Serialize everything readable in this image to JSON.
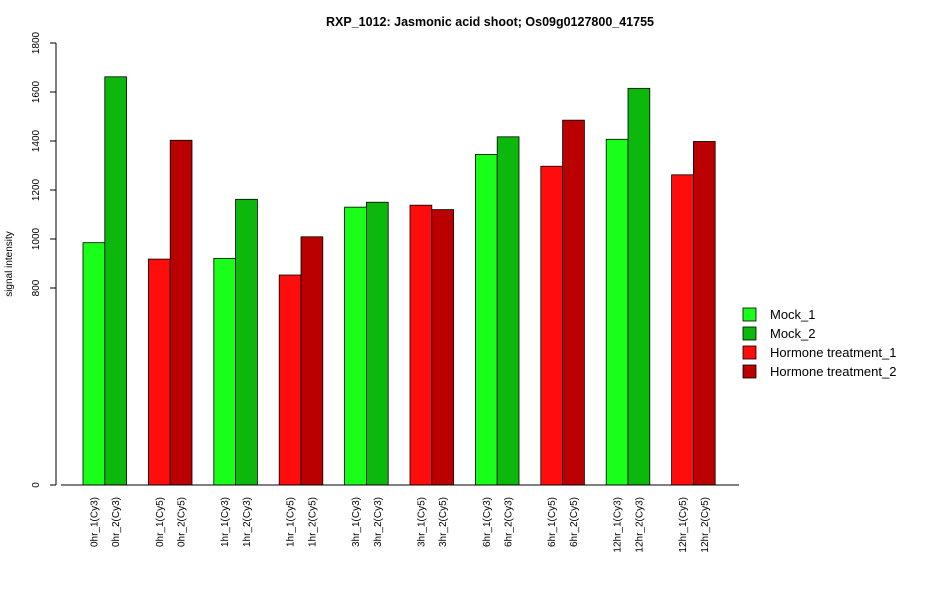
{
  "chart_data": {
    "type": "bar",
    "title": "RXP_1012: Jasmonic acid shoot; Os09g0127800_41755",
    "xlabel": "",
    "ylabel": "signal intensity",
    "yticks": [
      0,
      800,
      1000,
      1200,
      1400,
      1600,
      1800
    ],
    "ylim": [
      0,
      1800
    ],
    "y_axis_note": "axis is non-linear: 0 shown near bottom, 800–1800 spaced linearly above",
    "legend_position": "right",
    "legend": [
      {
        "label": "Mock_1",
        "color": "#1aff1a"
      },
      {
        "label": "Mock_2",
        "color": "#0cb80c"
      },
      {
        "label": "Hormone treatment_1",
        "color": "#ff0d0d"
      },
      {
        "label": "Hormone treatment_2",
        "color": "#bb0000"
      }
    ],
    "bars": [
      {
        "label": "0hr_1(Cy3)",
        "value": 985,
        "series": 0
      },
      {
        "label": "0hr_2(Cy3)",
        "value": 1662,
        "series": 1
      },
      {
        "label": "0hr_1(Cy5)",
        "value": 918,
        "series": 2
      },
      {
        "label": "0hr_2(Cy5)",
        "value": 1403,
        "series": 3
      },
      {
        "label": "1hr_1(Cy3)",
        "value": 921,
        "series": 0
      },
      {
        "label": "1hr_2(Cy3)",
        "value": 1162,
        "series": 1
      },
      {
        "label": "1hr_1(Cy5)",
        "value": 853,
        "series": 2
      },
      {
        "label": "1hr_2(Cy5)",
        "value": 1009,
        "series": 3
      },
      {
        "label": "3hr_1(Cy3)",
        "value": 1130,
        "series": 0
      },
      {
        "label": "3hr_2(Cy3)",
        "value": 1150,
        "series": 1
      },
      {
        "label": "3hr_1(Cy5)",
        "value": 1138,
        "series": 2
      },
      {
        "label": "3hr_2(Cy5)",
        "value": 1120,
        "series": 3
      },
      {
        "label": "6hr_1(Cy3)",
        "value": 1345,
        "series": 0
      },
      {
        "label": "6hr_2(Cy3)",
        "value": 1417,
        "series": 1
      },
      {
        "label": "6hr_1(Cy5)",
        "value": 1297,
        "series": 2
      },
      {
        "label": "6hr_2(Cy5)",
        "value": 1485,
        "series": 3
      },
      {
        "label": "12hr_1(Cy3)",
        "value": 1407,
        "series": 0
      },
      {
        "label": "12hr_2(Cy3)",
        "value": 1615,
        "series": 1
      },
      {
        "label": "12hr_1(Cy5)",
        "value": 1262,
        "series": 2
      },
      {
        "label": "12hr_2(Cy5)",
        "value": 1398,
        "series": 3
      }
    ]
  }
}
